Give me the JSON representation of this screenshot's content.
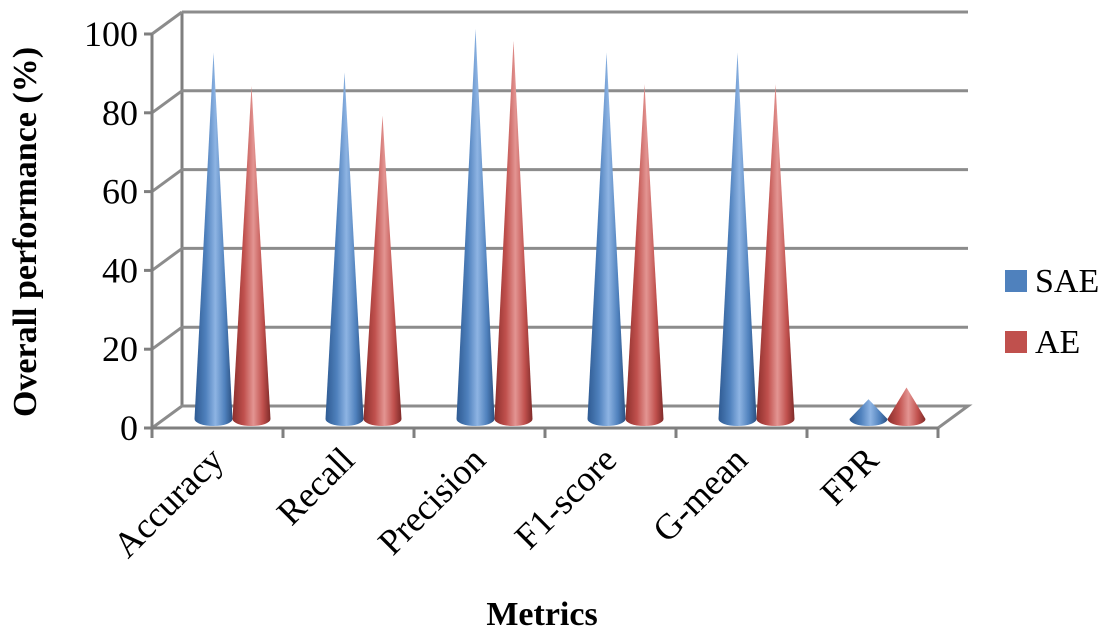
{
  "chart_data": {
    "type": "bar",
    "style": "3d-cone",
    "title": "",
    "xlabel": "Metrics",
    "ylabel": "Overall performance (%)",
    "ylim": [
      0,
      100
    ],
    "yticks": [
      0,
      20,
      40,
      60,
      80,
      100
    ],
    "categories": [
      "Accuracy",
      "Recall",
      "Precision",
      "F1-score",
      "G-mean",
      "FPR"
    ],
    "series": [
      {
        "name": "SAE",
        "color": "#4f81bd",
        "values": [
          92.5,
          87.5,
          98.5,
          92.5,
          92.5,
          4.5
        ]
      },
      {
        "name": "AE",
        "color": "#c0504d",
        "values": [
          84,
          76.5,
          95.5,
          84.5,
          84.5,
          7.5
        ]
      }
    ],
    "grid": true,
    "legend_position": "right"
  }
}
